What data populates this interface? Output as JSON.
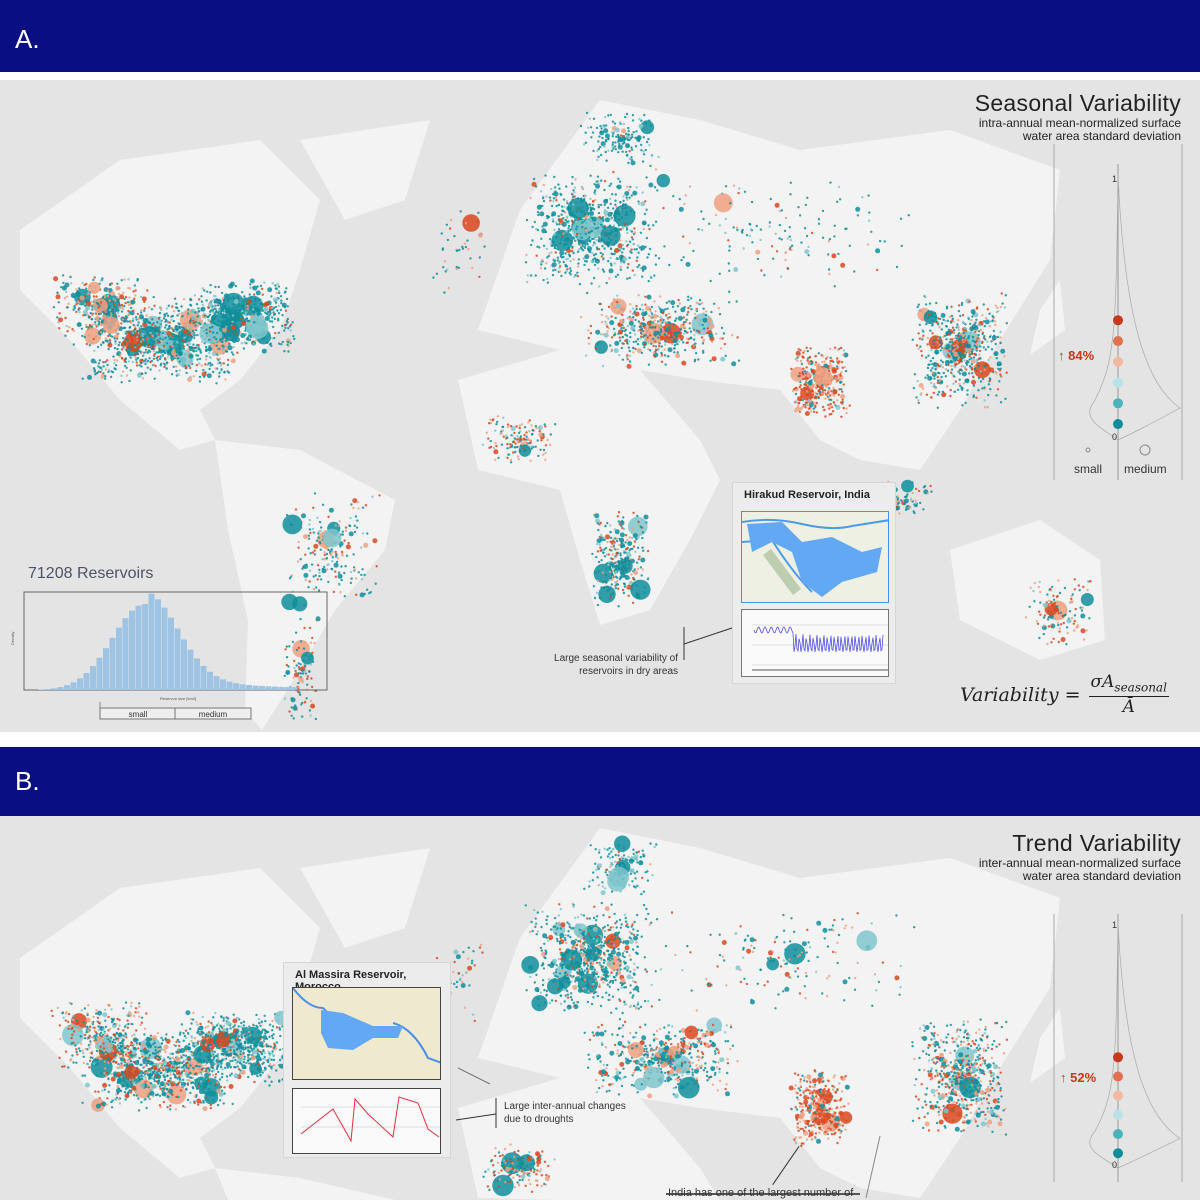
{
  "panels": [
    {
      "label": "A.",
      "title": "Seasonal Variability",
      "subtitle_line1": "intra-annual mean-normalized surface",
      "subtitle_line2": "water area standard deviation",
      "legend": {
        "axis_top": "1",
        "axis_bottom": "0",
        "increase": "↑ 84%",
        "increase_value_percent": 84,
        "small_label": "small",
        "medium_label": "medium"
      },
      "inset": {
        "title": "Hirakud Reservoir, India",
        "note_line1": "Large seasonal variability of",
        "note_line2": "reservoirs in dry areas"
      },
      "histogram": {
        "title": "71208 Reservoirs",
        "xlabel": "Reservoir size [km2]",
        "ylabel": "Density",
        "small_label": "small",
        "medium_label": "medium"
      },
      "formula": {
        "lhs": "Variability =",
        "numerator": "σA",
        "numerator_sub": "seasonal",
        "denominator": "Ā"
      }
    },
    {
      "label": "B.",
      "title": "Trend Variability",
      "subtitle_line1": "inter-annual mean-normalized surface",
      "subtitle_line2": "water area standard deviation",
      "legend": {
        "axis_top": "1",
        "axis_bottom": "0",
        "increase": "↑ 52%",
        "increase_value_percent": 52
      },
      "inset": {
        "title": "Al Massira Reservoir, Morocco",
        "note_line1": "Large inter-annual changes",
        "note_line2": "due to droughts"
      },
      "bottom_note": "India has one of the largest number of"
    }
  ],
  "colors": {
    "header": "#0a0e83",
    "teal": "#0e8e9b",
    "orange": "#d9481f",
    "ocean": "#e4e4e4",
    "land": "#f3f3f3"
  }
}
